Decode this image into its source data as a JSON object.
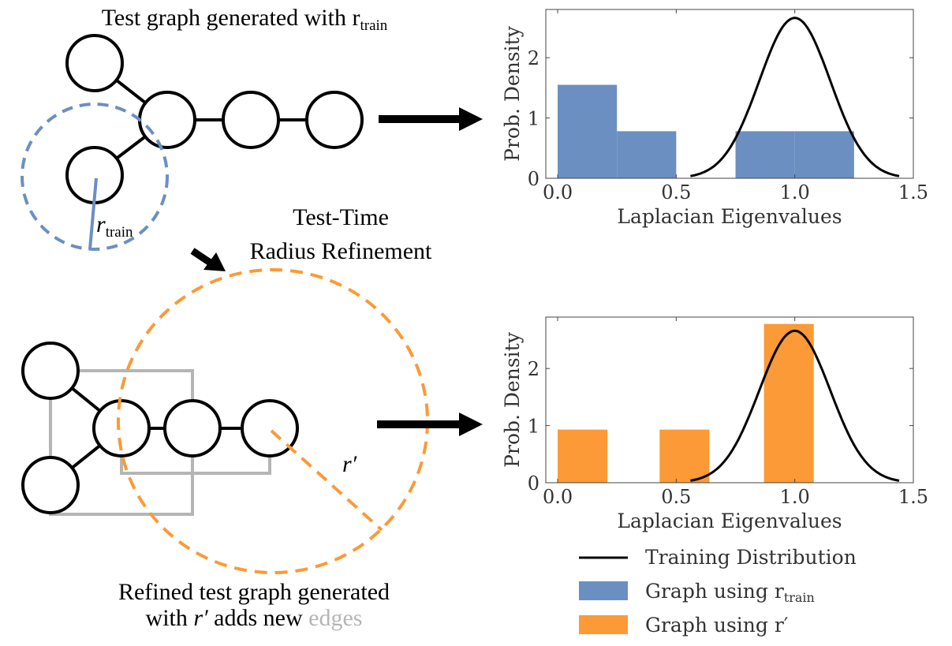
{
  "left_panel": {
    "top_title": "Test graph generated with r",
    "top_title_sub": "train",
    "r_train_label": "r",
    "r_train_sub": "train",
    "refinement_line1": "Test-Time",
    "refinement_line2": "Radius Refinement",
    "r_prime_label": "r′",
    "bottom_caption_line1": "Refined test graph generated",
    "bottom_caption_line2_a": "with ",
    "bottom_caption_line2_r": "r′",
    "bottom_caption_line2_b": " adds new ",
    "bottom_caption_line2_edges": "edges"
  },
  "colors": {
    "blue": "#6b8fc1",
    "orange": "#fb9a36",
    "gray_edges": "#b5b5b5",
    "black": "#000000"
  },
  "chart_data": [
    {
      "type": "bar",
      "xlabel": "Laplacian Eigenvalues",
      "ylabel": "Prob. Density",
      "xlim": [
        -0.05,
        1.5
      ],
      "ylim": [
        0,
        2.8
      ],
      "xticks": [
        "0.0",
        "0.5",
        "1.0",
        "1.5"
      ],
      "xtick_values": [
        0.0,
        0.5,
        1.0,
        1.5
      ],
      "yticks": [
        "0",
        "1",
        "2"
      ],
      "ytick_values": [
        0,
        1,
        2
      ],
      "bars": [
        {
          "x0": 0.0,
          "x1": 0.25,
          "value": 1.55
        },
        {
          "x0": 0.25,
          "x1": 0.5,
          "value": 0.78
        },
        {
          "x0": 0.75,
          "x1": 1.0,
          "value": 0.78
        },
        {
          "x0": 1.0,
          "x1": 1.25,
          "value": 0.78
        }
      ],
      "bar_color": "#6b8fc1",
      "curve": {
        "mean": 1.0,
        "std": 0.15,
        "x_range": [
          0.56,
          1.44
        ],
        "color": "#000000"
      }
    },
    {
      "type": "bar",
      "xlabel": "Laplacian Eigenvalues",
      "ylabel": "Prob. Density",
      "xlim": [
        -0.05,
        1.5
      ],
      "ylim": [
        0,
        2.9
      ],
      "xticks": [
        "0.0",
        "0.5",
        "1.0",
        "1.5"
      ],
      "xtick_values": [
        0.0,
        0.5,
        1.0,
        1.5
      ],
      "yticks": [
        "0",
        "1",
        "2"
      ],
      "ytick_values": [
        0,
        1,
        2
      ],
      "bars": [
        {
          "x0": 0.0,
          "x1": 0.21,
          "value": 0.93
        },
        {
          "x0": 0.43,
          "x1": 0.64,
          "value": 0.93
        },
        {
          "x0": 0.87,
          "x1": 1.08,
          "value": 2.78
        }
      ],
      "bar_color": "#fb9a36",
      "curve": {
        "mean": 1.0,
        "std": 0.15,
        "x_range": [
          0.56,
          1.44
        ],
        "color": "#000000"
      }
    }
  ],
  "legend": [
    {
      "label": "Training Distribution",
      "sub": "",
      "kind": "line",
      "color": "#000000"
    },
    {
      "label": "Graph using r",
      "sub": "train",
      "kind": "patch",
      "color": "#6b8fc1"
    },
    {
      "label": "Graph using r′",
      "sub": "",
      "kind": "patch",
      "color": "#fb9a36"
    }
  ]
}
